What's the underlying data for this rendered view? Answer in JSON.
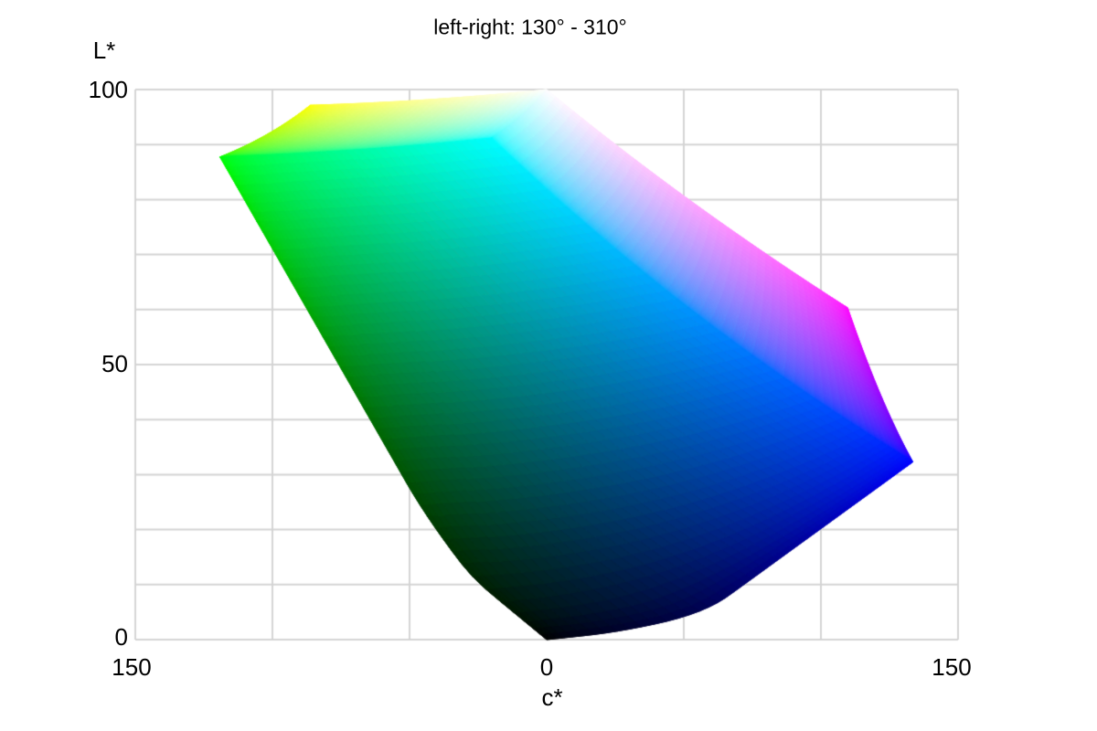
{
  "figure": {
    "background": "#ffffff",
    "text_color": "#000000"
  },
  "chart_data": {
    "type": "heatmap",
    "subtype": "cielab-srgb-gamut-side-view",
    "description": "Orthographic side view of the sRGB gamut solid in CIELAB. Horizontal axis is chroma c*: left half lies along hue 130 degrees, right half along hue 310 degrees. Vertical axis is lightness L*. The visible front surface faces hue 220 degrees (green/cyan/blue/magenta side); the red/orange side is hidden behind.",
    "title": "left-right: 130° - 310°",
    "gamut": "sRGB",
    "hue_left_deg": 130,
    "hue_right_deg": 310,
    "front_hue_deg": 220,
    "xlabel": "c*",
    "ylabel": "L*",
    "xlim": [
      -150,
      150
    ],
    "ylim": [
      0,
      100
    ],
    "x_tick_labels": [
      "150",
      "0",
      "150"
    ],
    "x_tick_values": [
      -150,
      0,
      150
    ],
    "y_tick_labels": [
      "0",
      "50",
      "100"
    ],
    "y_tick_values": [
      0,
      50,
      100
    ],
    "grid": {
      "x_step": 50,
      "y_step": 10,
      "color": "#d4d4d4",
      "width": 2
    },
    "legend": "none",
    "landmarks": [
      {
        "name": "white",
        "c": 0,
        "L": 100
      },
      {
        "name": "black",
        "c": 0,
        "L": 0
      },
      {
        "name": "green",
        "c": -119,
        "L": 88
      },
      {
        "name": "yellow",
        "c": -86,
        "L": 97
      },
      {
        "name": "cyan",
        "c": -21,
        "L": 91
      },
      {
        "name": "magenta",
        "c": 110,
        "L": 60
      },
      {
        "name": "blue",
        "c": 133,
        "L": 32
      }
    ],
    "mesh_n": 48
  }
}
